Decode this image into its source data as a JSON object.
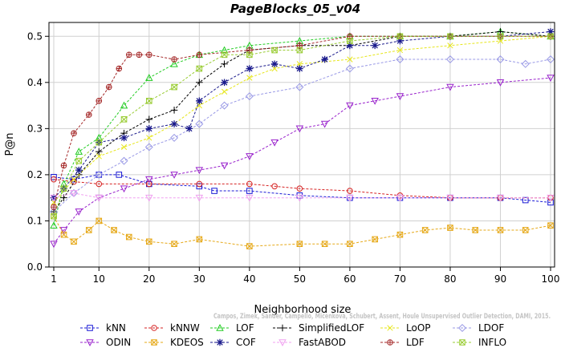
{
  "chart_data": {
    "type": "line",
    "title": "PageBlocks_05_v04",
    "xlabel": "Neighborhood size",
    "ylabel": "P@n",
    "xlim": [
      1,
      100
    ],
    "ylim": [
      0,
      0.53
    ],
    "xticks": [
      1,
      10,
      20,
      30,
      40,
      50,
      60,
      70,
      80,
      90,
      100
    ],
    "yticks": [
      0.0,
      0.1,
      0.2,
      0.3,
      0.4,
      0.5
    ],
    "grid": true,
    "legend_position": "bottom",
    "citation": "Campos, Zimek, Sander, Campello, Micenkova, Schubert, Assent, Houle   Unsupervised Outlier Detection, DAMI, 2015.",
    "series": [
      {
        "name": "kNN",
        "color": "#1a1ad6",
        "marker": "square",
        "x": [
          1,
          5,
          10,
          14,
          20,
          30,
          33,
          40,
          50,
          60,
          70,
          80,
          90,
          95,
          100
        ],
        "y": [
          0.195,
          0.19,
          0.2,
          0.2,
          0.18,
          0.175,
          0.165,
          0.165,
          0.155,
          0.15,
          0.15,
          0.15,
          0.15,
          0.145,
          0.14
        ]
      },
      {
        "name": "kNNW",
        "color": "#d62222",
        "marker": "circle",
        "x": [
          1,
          5,
          10,
          20,
          30,
          40,
          45,
          50,
          60,
          70,
          80,
          90,
          100
        ],
        "y": [
          0.19,
          0.185,
          0.18,
          0.18,
          0.18,
          0.18,
          0.175,
          0.17,
          0.165,
          0.155,
          0.15,
          0.15,
          0.15
        ]
      },
      {
        "name": "LOF",
        "color": "#22cc22",
        "marker": "triangle-up",
        "x": [
          1,
          3,
          6,
          10,
          15,
          20,
          25,
          30,
          35,
          40,
          50,
          60,
          70,
          80,
          90,
          100
        ],
        "y": [
          0.09,
          0.18,
          0.25,
          0.28,
          0.35,
          0.41,
          0.44,
          0.46,
          0.47,
          0.48,
          0.49,
          0.5,
          0.5,
          0.5,
          0.51,
          0.5
        ]
      },
      {
        "name": "SimplifiedLOF",
        "color": "#000000",
        "marker": "plus",
        "x": [
          1,
          3,
          6,
          10,
          15,
          20,
          25,
          30,
          35,
          40,
          50,
          60,
          70,
          80,
          90,
          100
        ],
        "y": [
          0.12,
          0.15,
          0.2,
          0.25,
          0.29,
          0.32,
          0.34,
          0.4,
          0.44,
          0.47,
          0.48,
          0.48,
          0.5,
          0.5,
          0.51,
          0.5
        ]
      },
      {
        "name": "LoOP",
        "color": "#e6e61a",
        "marker": "x",
        "x": [
          1,
          5,
          10,
          15,
          20,
          25,
          30,
          35,
          40,
          45,
          50,
          60,
          70,
          80,
          90,
          100
        ],
        "y": [
          0.14,
          0.19,
          0.24,
          0.26,
          0.28,
          0.31,
          0.35,
          0.38,
          0.41,
          0.43,
          0.44,
          0.45,
          0.47,
          0.48,
          0.49,
          0.5
        ]
      },
      {
        "name": "LDOF",
        "color": "#9999e6",
        "marker": "diamond",
        "x": [
          1,
          5,
          10,
          15,
          20,
          25,
          30,
          35,
          40,
          50,
          60,
          70,
          80,
          90,
          95,
          100
        ],
        "y": [
          0.12,
          0.16,
          0.2,
          0.23,
          0.26,
          0.28,
          0.31,
          0.35,
          0.37,
          0.39,
          0.43,
          0.45,
          0.45,
          0.45,
          0.44,
          0.45
        ]
      },
      {
        "name": "ODIN",
        "color": "#9922cc",
        "marker": "triangle-down",
        "x": [
          1,
          3,
          6,
          10,
          15,
          20,
          25,
          30,
          35,
          40,
          45,
          50,
          55,
          60,
          65,
          70,
          80,
          90,
          100
        ],
        "y": [
          0.05,
          0.08,
          0.12,
          0.15,
          0.17,
          0.19,
          0.2,
          0.21,
          0.22,
          0.24,
          0.27,
          0.3,
          0.31,
          0.35,
          0.36,
          0.37,
          0.39,
          0.4,
          0.41
        ]
      },
      {
        "name": "KDEOS",
        "color": "#e6a817",
        "marker": "square-x",
        "x": [
          1,
          3,
          5,
          8,
          10,
          13,
          16,
          20,
          25,
          30,
          40,
          50,
          55,
          60,
          65,
          70,
          75,
          80,
          85,
          90,
          95,
          100
        ],
        "y": [
          0.11,
          0.07,
          0.055,
          0.08,
          0.1,
          0.08,
          0.065,
          0.055,
          0.05,
          0.06,
          0.045,
          0.05,
          0.05,
          0.05,
          0.06,
          0.07,
          0.08,
          0.085,
          0.08,
          0.08,
          0.08,
          0.09
        ]
      },
      {
        "name": "COF",
        "color": "#1a1a8c",
        "marker": "asterisk",
        "x": [
          1,
          3,
          6,
          10,
          15,
          20,
          25,
          28,
          30,
          35,
          40,
          45,
          50,
          55,
          60,
          65,
          70,
          80,
          90,
          100
        ],
        "y": [
          0.15,
          0.17,
          0.21,
          0.27,
          0.28,
          0.3,
          0.31,
          0.3,
          0.36,
          0.4,
          0.43,
          0.44,
          0.43,
          0.45,
          0.48,
          0.48,
          0.49,
          0.5,
          0.5,
          0.51
        ]
      },
      {
        "name": "FastABOD",
        "color": "#f0a0f0",
        "marker": "triangle-down",
        "x": [
          1,
          5,
          10,
          20,
          30,
          40,
          50,
          60,
          70,
          80,
          90,
          100
        ],
        "y": [
          0.15,
          0.16,
          0.15,
          0.15,
          0.15,
          0.15,
          0.15,
          0.15,
          0.15,
          0.15,
          0.15,
          0.15
        ]
      },
      {
        "name": "LDF",
        "color": "#a52a2a",
        "marker": "circle-plus",
        "x": [
          1,
          3,
          5,
          8,
          10,
          12,
          14,
          16,
          18,
          20,
          25,
          30,
          40,
          50,
          60,
          70,
          80,
          90,
          100
        ],
        "y": [
          0.13,
          0.22,
          0.29,
          0.33,
          0.36,
          0.39,
          0.43,
          0.46,
          0.46,
          0.46,
          0.45,
          0.46,
          0.47,
          0.48,
          0.5,
          0.5,
          0.5,
          0.5,
          0.5
        ]
      },
      {
        "name": "INFLO",
        "color": "#99cc33",
        "marker": "square-x",
        "x": [
          1,
          3,
          6,
          10,
          15,
          20,
          25,
          30,
          35,
          40,
          45,
          50,
          60,
          70,
          80,
          90,
          100
        ],
        "y": [
          0.11,
          0.17,
          0.23,
          0.27,
          0.32,
          0.36,
          0.39,
          0.43,
          0.46,
          0.46,
          0.47,
          0.47,
          0.49,
          0.5,
          0.5,
          0.5,
          0.5
        ]
      }
    ],
    "legend_order": [
      "kNN",
      "kNNW",
      "LOF",
      "SimplifiedLOF",
      "LoOP",
      "LDOF",
      "ODIN",
      "KDEOS",
      "COF",
      "FastABOD",
      "LDF",
      "INFLO"
    ]
  }
}
